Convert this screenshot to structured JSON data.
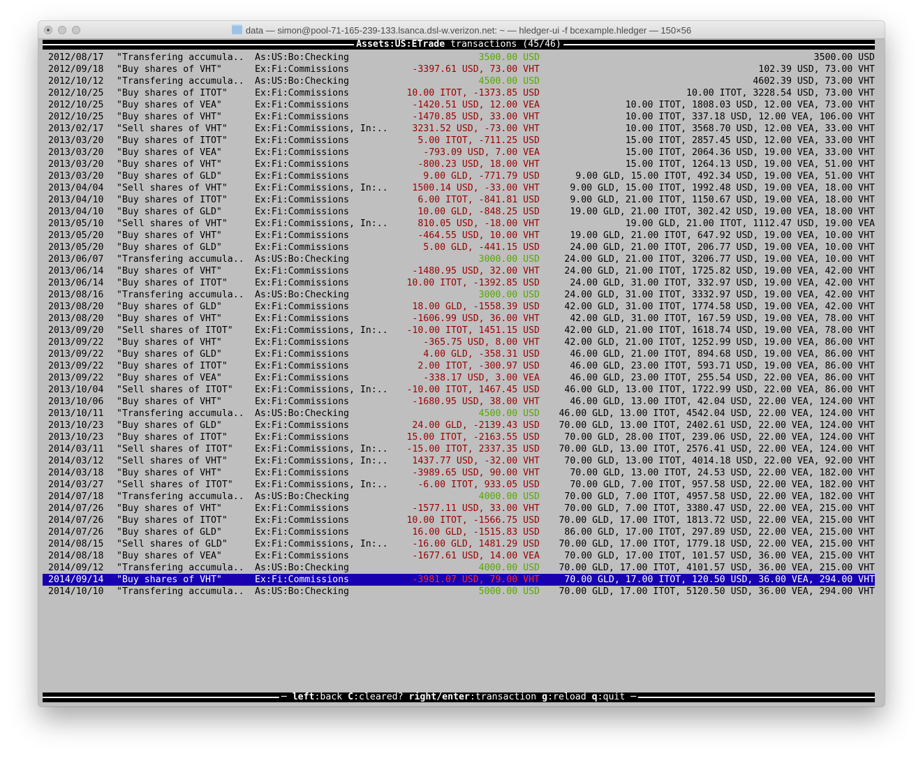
{
  "window": {
    "title": "data — simon@pool-71-165-239-133.lsanca.dsl-w.verizon.net: ~ — hledger-ui -f bcexample.hledger — 150×56"
  },
  "header": {
    "account": "Assets:US:ETrade",
    "label": " transactions (45/46)"
  },
  "colors": {
    "background": "#bfbfbf",
    "negative_change": "#9a0000",
    "positive_change": "#56a800",
    "selection": "#1800b0"
  },
  "selected_index": 44,
  "rows": [
    {
      "date": "2012/08/17",
      "desc": "\"Transfering accumula..",
      "account": "As:US:Bo:Checking",
      "amount": "3500.00 USD",
      "balance": "3500.00 USD"
    },
    {
      "date": "2012/09/18",
      "desc": "\"Buy shares of VHT\"",
      "account": "Ex:Fi:Commissions",
      "amount": "-3397.61 USD, 73.00 VHT",
      "balance": "102.39 USD, 73.00 VHT"
    },
    {
      "date": "2012/10/12",
      "desc": "\"Transfering accumula..",
      "account": "As:US:Bo:Checking",
      "amount": "4500.00 USD",
      "balance": "4602.39 USD, 73.00 VHT"
    },
    {
      "date": "2012/10/25",
      "desc": "\"Buy shares of ITOT\"",
      "account": "Ex:Fi:Commissions",
      "amount": "10.00 ITOT, -1373.85 USD",
      "balance": "10.00 ITOT, 3228.54 USD, 73.00 VHT"
    },
    {
      "date": "2012/10/25",
      "desc": "\"Buy shares of VEA\"",
      "account": "Ex:Fi:Commissions",
      "amount": "-1420.51 USD, 12.00 VEA",
      "balance": "10.00 ITOT, 1808.03 USD, 12.00 VEA, 73.00 VHT"
    },
    {
      "date": "2012/10/25",
      "desc": "\"Buy shares of VHT\"",
      "account": "Ex:Fi:Commissions",
      "amount": "-1470.85 USD, 33.00 VHT",
      "balance": "10.00 ITOT, 337.18 USD, 12.00 VEA, 106.00 VHT"
    },
    {
      "date": "2013/02/17",
      "desc": "\"Sell shares of VHT\"",
      "account": "Ex:Fi:Commissions, In:..",
      "amount": "3231.52 USD, -73.00 VHT",
      "balance": "10.00 ITOT, 3568.70 USD, 12.00 VEA, 33.00 VHT"
    },
    {
      "date": "2013/03/20",
      "desc": "\"Buy shares of ITOT\"",
      "account": "Ex:Fi:Commissions",
      "amount": "5.00 ITOT, -711.25 USD",
      "balance": "15.00 ITOT, 2857.45 USD, 12.00 VEA, 33.00 VHT"
    },
    {
      "date": "2013/03/20",
      "desc": "\"Buy shares of VEA\"",
      "account": "Ex:Fi:Commissions",
      "amount": "-793.09 USD, 7.00 VEA",
      "balance": "15.00 ITOT, 2064.36 USD, 19.00 VEA, 33.00 VHT"
    },
    {
      "date": "2013/03/20",
      "desc": "\"Buy shares of VHT\"",
      "account": "Ex:Fi:Commissions",
      "amount": "-800.23 USD, 18.00 VHT",
      "balance": "15.00 ITOT, 1264.13 USD, 19.00 VEA, 51.00 VHT"
    },
    {
      "date": "2013/03/20",
      "desc": "\"Buy shares of GLD\"",
      "account": "Ex:Fi:Commissions",
      "amount": "9.00 GLD, -771.79 USD",
      "balance": "9.00 GLD, 15.00 ITOT, 492.34 USD, 19.00 VEA, 51.00 VHT"
    },
    {
      "date": "2013/04/04",
      "desc": "\"Sell shares of VHT\"",
      "account": "Ex:Fi:Commissions, In:..",
      "amount": "1500.14 USD, -33.00 VHT",
      "balance": "9.00 GLD, 15.00 ITOT, 1992.48 USD, 19.00 VEA, 18.00 VHT"
    },
    {
      "date": "2013/04/10",
      "desc": "\"Buy shares of ITOT\"",
      "account": "Ex:Fi:Commissions",
      "amount": "6.00 ITOT, -841.81 USD",
      "balance": "9.00 GLD, 21.00 ITOT, 1150.67 USD, 19.00 VEA, 18.00 VHT"
    },
    {
      "date": "2013/04/10",
      "desc": "\"Buy shares of GLD\"",
      "account": "Ex:Fi:Commissions",
      "amount": "10.00 GLD, -848.25 USD",
      "balance": "19.00 GLD, 21.00 ITOT, 302.42 USD, 19.00 VEA, 18.00 VHT"
    },
    {
      "date": "2013/05/10",
      "desc": "\"Sell shares of VHT\"",
      "account": "Ex:Fi:Commissions, In:..",
      "amount": "810.05 USD, -18.00 VHT",
      "balance": "19.00 GLD, 21.00 ITOT, 1112.47 USD, 19.00 VEA"
    },
    {
      "date": "2013/05/20",
      "desc": "\"Buy shares of VHT\"",
      "account": "Ex:Fi:Commissions",
      "amount": "-464.55 USD, 10.00 VHT",
      "balance": "19.00 GLD, 21.00 ITOT, 647.92 USD, 19.00 VEA, 10.00 VHT"
    },
    {
      "date": "2013/05/20",
      "desc": "\"Buy shares of GLD\"",
      "account": "Ex:Fi:Commissions",
      "amount": "5.00 GLD, -441.15 USD",
      "balance": "24.00 GLD, 21.00 ITOT, 206.77 USD, 19.00 VEA, 10.00 VHT"
    },
    {
      "date": "2013/06/07",
      "desc": "\"Transfering accumula..",
      "account": "As:US:Bo:Checking",
      "amount": "3000.00 USD",
      "balance": "24.00 GLD, 21.00 ITOT, 3206.77 USD, 19.00 VEA, 10.00 VHT"
    },
    {
      "date": "2013/06/14",
      "desc": "\"Buy shares of VHT\"",
      "account": "Ex:Fi:Commissions",
      "amount": "-1480.95 USD, 32.00 VHT",
      "balance": "24.00 GLD, 21.00 ITOT, 1725.82 USD, 19.00 VEA, 42.00 VHT"
    },
    {
      "date": "2013/06/14",
      "desc": "\"Buy shares of ITOT\"",
      "account": "Ex:Fi:Commissions",
      "amount": "10.00 ITOT, -1392.85 USD",
      "balance": "24.00 GLD, 31.00 ITOT, 332.97 USD, 19.00 VEA, 42.00 VHT"
    },
    {
      "date": "2013/08/16",
      "desc": "\"Transfering accumula..",
      "account": "As:US:Bo:Checking",
      "amount": "3000.00 USD",
      "balance": "24.00 GLD, 31.00 ITOT, 3332.97 USD, 19.00 VEA, 42.00 VHT"
    },
    {
      "date": "2013/08/20",
      "desc": "\"Buy shares of GLD\"",
      "account": "Ex:Fi:Commissions",
      "amount": "18.00 GLD, -1558.39 USD",
      "balance": "42.00 GLD, 31.00 ITOT, 1774.58 USD, 19.00 VEA, 42.00 VHT"
    },
    {
      "date": "2013/08/20",
      "desc": "\"Buy shares of VHT\"",
      "account": "Ex:Fi:Commissions",
      "amount": "-1606.99 USD, 36.00 VHT",
      "balance": "42.00 GLD, 31.00 ITOT, 167.59 USD, 19.00 VEA, 78.00 VHT"
    },
    {
      "date": "2013/09/20",
      "desc": "\"Sell shares of ITOT\"",
      "account": "Ex:Fi:Commissions, In:..",
      "amount": "-10.00 ITOT, 1451.15 USD",
      "balance": "42.00 GLD, 21.00 ITOT, 1618.74 USD, 19.00 VEA, 78.00 VHT"
    },
    {
      "date": "2013/09/22",
      "desc": "\"Buy shares of VHT\"",
      "account": "Ex:Fi:Commissions",
      "amount": "-365.75 USD, 8.00 VHT",
      "balance": "42.00 GLD, 21.00 ITOT, 1252.99 USD, 19.00 VEA, 86.00 VHT"
    },
    {
      "date": "2013/09/22",
      "desc": "\"Buy shares of GLD\"",
      "account": "Ex:Fi:Commissions",
      "amount": "4.00 GLD, -358.31 USD",
      "balance": "46.00 GLD, 21.00 ITOT, 894.68 USD, 19.00 VEA, 86.00 VHT"
    },
    {
      "date": "2013/09/22",
      "desc": "\"Buy shares of ITOT\"",
      "account": "Ex:Fi:Commissions",
      "amount": "2.00 ITOT, -300.97 USD",
      "balance": "46.00 GLD, 23.00 ITOT, 593.71 USD, 19.00 VEA, 86.00 VHT"
    },
    {
      "date": "2013/09/22",
      "desc": "\"Buy shares of VEA\"",
      "account": "Ex:Fi:Commissions",
      "amount": "-338.17 USD, 3.00 VEA",
      "balance": "46.00 GLD, 23.00 ITOT, 255.54 USD, 22.00 VEA, 86.00 VHT"
    },
    {
      "date": "2013/10/04",
      "desc": "\"Sell shares of ITOT\"",
      "account": "Ex:Fi:Commissions, In:..",
      "amount": "-10.00 ITOT, 1467.45 USD",
      "balance": "46.00 GLD, 13.00 ITOT, 1722.99 USD, 22.00 VEA, 86.00 VHT"
    },
    {
      "date": "2013/10/06",
      "desc": "\"Buy shares of VHT\"",
      "account": "Ex:Fi:Commissions",
      "amount": "-1680.95 USD, 38.00 VHT",
      "balance": "46.00 GLD, 13.00 ITOT, 42.04 USD, 22.00 VEA, 124.00 VHT"
    },
    {
      "date": "2013/10/11",
      "desc": "\"Transfering accumula..",
      "account": "As:US:Bo:Checking",
      "amount": "4500.00 USD",
      "balance": "46.00 GLD, 13.00 ITOT, 4542.04 USD, 22.00 VEA, 124.00 VHT"
    },
    {
      "date": "2013/10/23",
      "desc": "\"Buy shares of GLD\"",
      "account": "Ex:Fi:Commissions",
      "amount": "24.00 GLD, -2139.43 USD",
      "balance": "70.00 GLD, 13.00 ITOT, 2402.61 USD, 22.00 VEA, 124.00 VHT"
    },
    {
      "date": "2013/10/23",
      "desc": "\"Buy shares of ITOT\"",
      "account": "Ex:Fi:Commissions",
      "amount": "15.00 ITOT, -2163.55 USD",
      "balance": "70.00 GLD, 28.00 ITOT, 239.06 USD, 22.00 VEA, 124.00 VHT"
    },
    {
      "date": "2014/03/11",
      "desc": "\"Sell shares of ITOT\"",
      "account": "Ex:Fi:Commissions, In:..",
      "amount": "-15.00 ITOT, 2337.35 USD",
      "balance": "70.00 GLD, 13.00 ITOT, 2576.41 USD, 22.00 VEA, 124.00 VHT"
    },
    {
      "date": "2014/03/12",
      "desc": "\"Sell shares of VHT\"",
      "account": "Ex:Fi:Commissions, In:..",
      "amount": "1437.77 USD, -32.00 VHT",
      "balance": "70.00 GLD, 13.00 ITOT, 4014.18 USD, 22.00 VEA, 92.00 VHT"
    },
    {
      "date": "2014/03/18",
      "desc": "\"Buy shares of VHT\"",
      "account": "Ex:Fi:Commissions",
      "amount": "-3989.65 USD, 90.00 VHT",
      "balance": "70.00 GLD, 13.00 ITOT, 24.53 USD, 22.00 VEA, 182.00 VHT"
    },
    {
      "date": "2014/03/27",
      "desc": "\"Sell shares of ITOT\"",
      "account": "Ex:Fi:Commissions, In:..",
      "amount": "-6.00 ITOT, 933.05 USD",
      "balance": "70.00 GLD, 7.00 ITOT, 957.58 USD, 22.00 VEA, 182.00 VHT"
    },
    {
      "date": "2014/07/18",
      "desc": "\"Transfering accumula..",
      "account": "As:US:Bo:Checking",
      "amount": "4000.00 USD",
      "balance": "70.00 GLD, 7.00 ITOT, 4957.58 USD, 22.00 VEA, 182.00 VHT"
    },
    {
      "date": "2014/07/26",
      "desc": "\"Buy shares of VHT\"",
      "account": "Ex:Fi:Commissions",
      "amount": "-1577.11 USD, 33.00 VHT",
      "balance": "70.00 GLD, 7.00 ITOT, 3380.47 USD, 22.00 VEA, 215.00 VHT"
    },
    {
      "date": "2014/07/26",
      "desc": "\"Buy shares of ITOT\"",
      "account": "Ex:Fi:Commissions",
      "amount": "10.00 ITOT, -1566.75 USD",
      "balance": "70.00 GLD, 17.00 ITOT, 1813.72 USD, 22.00 VEA, 215.00 VHT"
    },
    {
      "date": "2014/07/26",
      "desc": "\"Buy shares of GLD\"",
      "account": "Ex:Fi:Commissions",
      "amount": "16.00 GLD, -1515.83 USD",
      "balance": "86.00 GLD, 17.00 ITOT, 297.89 USD, 22.00 VEA, 215.00 VHT"
    },
    {
      "date": "2014/08/15",
      "desc": "\"Sell shares of GLD\"",
      "account": "Ex:Fi:Commissions, In:..",
      "amount": "-16.00 GLD, 1481.29 USD",
      "balance": "70.00 GLD, 17.00 ITOT, 1779.18 USD, 22.00 VEA, 215.00 VHT"
    },
    {
      "date": "2014/08/18",
      "desc": "\"Buy shares of VEA\"",
      "account": "Ex:Fi:Commissions",
      "amount": "-1677.61 USD, 14.00 VEA",
      "balance": "70.00 GLD, 17.00 ITOT, 101.57 USD, 36.00 VEA, 215.00 VHT"
    },
    {
      "date": "2014/09/12",
      "desc": "\"Transfering accumula..",
      "account": "As:US:Bo:Checking",
      "amount": "4000.00 USD",
      "balance": "70.00 GLD, 17.00 ITOT, 4101.57 USD, 36.00 VEA, 215.00 VHT"
    },
    {
      "date": "2014/09/14",
      "desc": "\"Buy shares of VHT\"",
      "account": "Ex:Fi:Commissions",
      "amount": "-3981.07 USD, 79.00 VHT",
      "balance": "70.00 GLD, 17.00 ITOT, 120.50 USD, 36.00 VEA, 294.00 VHT"
    },
    {
      "date": "2014/10/10",
      "desc": "\"Transfering accumula..",
      "account": "As:US:Bo:Checking",
      "amount": "5000.00 USD",
      "balance": "70.00 GLD, 17.00 ITOT, 5120.50 USD, 36.00 VEA, 294.00 VHT"
    }
  ],
  "footer": {
    "keys": [
      {
        "key": "left",
        "action": "back"
      },
      {
        "key": "C",
        "action": "cleared?"
      },
      {
        "key": "right/enter",
        "action": "transaction"
      },
      {
        "key": "g",
        "action": "reload"
      },
      {
        "key": "q",
        "action": "quit"
      }
    ]
  }
}
